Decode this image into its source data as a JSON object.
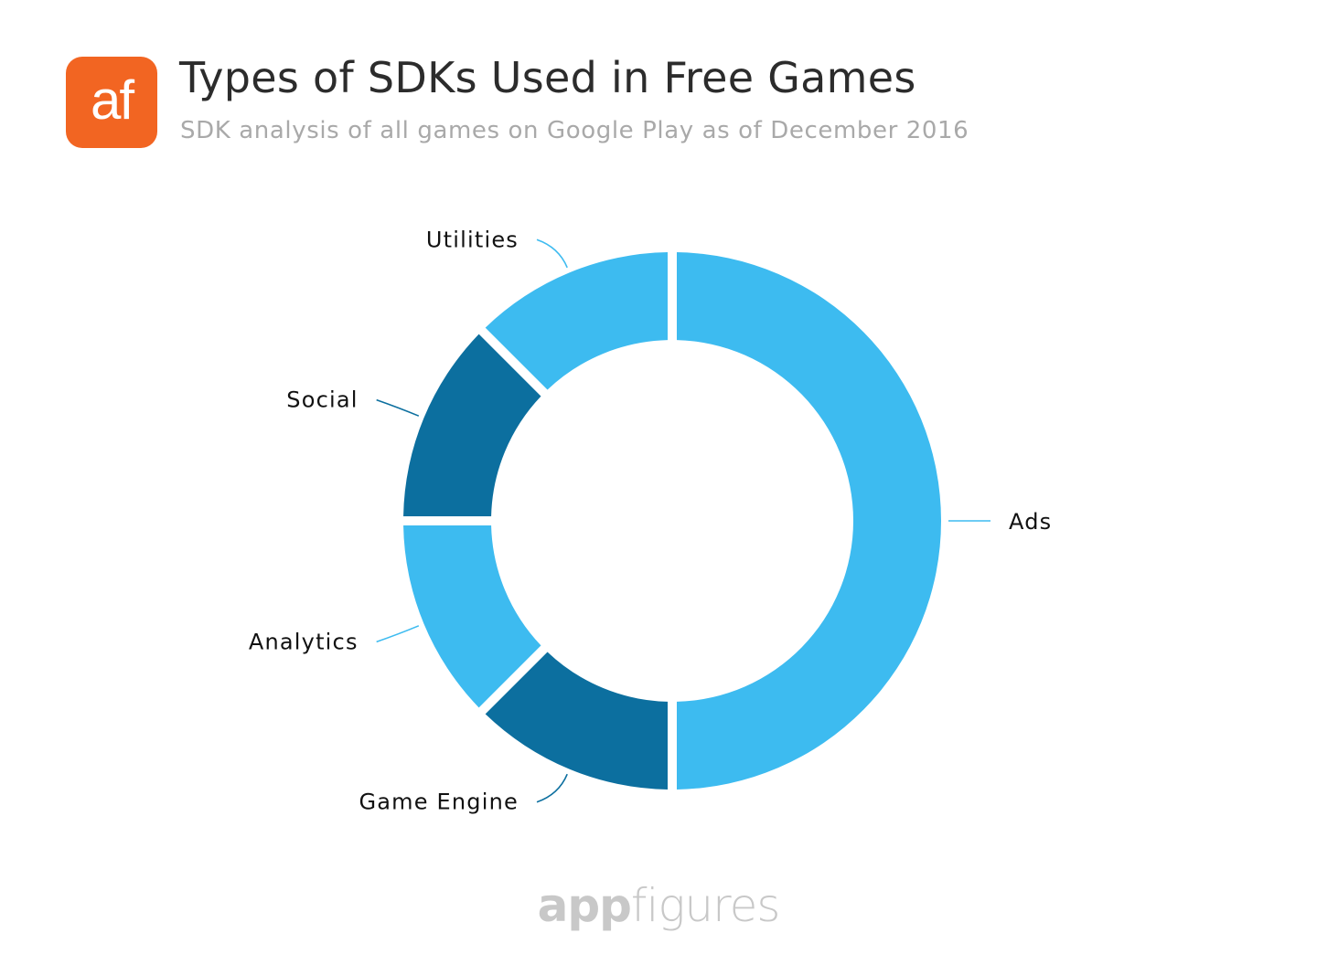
{
  "header": {
    "logo_text": "af",
    "logo_color": "#f26522",
    "title": "Types of SDKs Used in Free Games",
    "subtitle": "SDK analysis of all games on Google Play as of December 2016"
  },
  "footer": {
    "brand_part1": "app",
    "brand_part2": "figures"
  },
  "colors": {
    "light_blue": "#3dbbf0",
    "dark_blue": "#0c6f9f"
  },
  "chart_data": {
    "type": "pie",
    "donut": true,
    "categories": [
      "Ads",
      "Game Engine",
      "Analytics",
      "Social",
      "Utilities"
    ],
    "values": [
      50,
      12.5,
      12.5,
      12.5,
      12.5
    ],
    "colors": [
      "#3dbbf0",
      "#0c6f9f",
      "#3dbbf0",
      "#0c6f9f",
      "#3dbbf0"
    ],
    "title": "Types of SDKs Used in Free Games",
    "subtitle": "SDK analysis of all games on Google Play as of December 2016",
    "legend": "none"
  }
}
